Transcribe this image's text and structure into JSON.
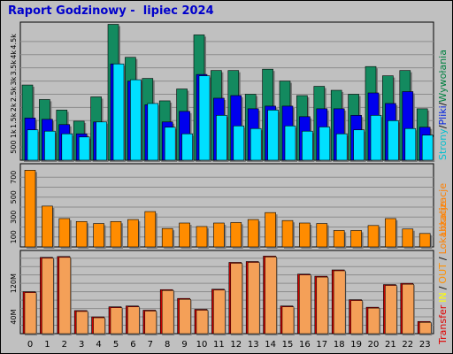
{
  "title": "Raport Godzinowy -  lipiec 2024",
  "chart_data": [
    {
      "type": "bar",
      "title": "Raport Godzinowy -  lipiec 2024",
      "categories": [
        "0",
        "1",
        "2",
        "3",
        "4",
        "5",
        "6",
        "7",
        "8",
        "9",
        "10",
        "11",
        "12",
        "13",
        "14",
        "15",
        "16",
        "17",
        "18",
        "19",
        "20",
        "21",
        "22",
        "23"
      ],
      "y_ticks": [
        "500",
        "1k",
        "1.5k",
        "2k",
        "2.5k",
        "3k",
        "3.5k",
        "4k",
        "4.5k"
      ],
      "ylim": [
        0,
        5100
      ],
      "legend": [
        "Strony",
        "/",
        "Pliki",
        "/",
        "Wywołania"
      ],
      "legend_colors": [
        "#00c0d0",
        "#000000",
        "#0020e0",
        "#000000",
        "#008040"
      ],
      "series": [
        {
          "name": "Wywołania",
          "color": "#138a5f",
          "values": [
            2850,
            2300,
            1900,
            1480,
            2400,
            5150,
            3900,
            3100,
            2250,
            2700,
            4750,
            3400,
            3400,
            2500,
            3450,
            3000,
            2450,
            2800,
            2650,
            2500,
            3550,
            3200,
            3400,
            1950
          ]
        },
        {
          "name": "Pliki",
          "color": "#0000ee",
          "values": [
            1600,
            1550,
            1350,
            1000,
            1450,
            3650,
            3000,
            2100,
            1450,
            1850,
            3250,
            2350,
            2450,
            1950,
            2050,
            2050,
            1650,
            1950,
            1950,
            1700,
            2550,
            2150,
            2600,
            1250
          ]
        },
        {
          "name": "Strony",
          "color": "#00e0ff",
          "values": [
            1150,
            1100,
            1000,
            880,
            1450,
            3650,
            3050,
            2150,
            1250,
            1000,
            3200,
            1700,
            1300,
            1200,
            1900,
            1300,
            1100,
            1260,
            1000,
            1150,
            1700,
            1500,
            1200,
            950
          ]
        }
      ]
    },
    {
      "type": "bar",
      "categories": [
        "0",
        "1",
        "2",
        "3",
        "4",
        "5",
        "6",
        "7",
        "8",
        "9",
        "10",
        "11",
        "12",
        "13",
        "14",
        "15",
        "16",
        "17",
        "18",
        "19",
        "20",
        "21",
        "22",
        "23"
      ],
      "y_ticks": [
        "100",
        "300",
        "500",
        "700"
      ],
      "ylim": [
        0,
        800
      ],
      "legend": [
        "Lokalizacje"
      ],
      "legend_colors": [
        "#ff8000"
      ],
      "series": [
        {
          "name": "Lokalizacje",
          "color": "#ff8c00",
          "values": [
            770,
            410,
            285,
            255,
            235,
            255,
            275,
            355,
            185,
            240,
            205,
            240,
            245,
            275,
            345,
            265,
            240,
            235,
            165,
            165,
            215,
            285,
            180,
            135
          ]
        }
      ]
    },
    {
      "type": "bar",
      "categories": [
        "0",
        "1",
        "2",
        "3",
        "4",
        "5",
        "6",
        "7",
        "8",
        "9",
        "10",
        "11",
        "12",
        "13",
        "14",
        "15",
        "16",
        "17",
        "18",
        "19",
        "20",
        "21",
        "22",
        "23"
      ],
      "y_ticks": [
        "40M",
        "120M"
      ],
      "ylim": [
        0,
        190
      ],
      "legend": [
        "Transfer",
        "IN",
        "/",
        "OUT",
        "/",
        "Lokalizacje"
      ],
      "legend_colors": [
        "#e00000",
        "#ffff00",
        "#000000",
        "#ff9000",
        "#000000",
        "#ff8000"
      ],
      "series": [
        {
          "name": "Transfer",
          "color": "#cc0000",
          "values": [
            100,
            182,
            184,
            55,
            40,
            64,
            66,
            56,
            105,
            84,
            58,
            106,
            170,
            172,
            185,
            66,
            142,
            137,
            152,
            81,
            63,
            117,
            120,
            29
          ]
        }
      ]
    }
  ],
  "categories_axis": [
    "0",
    "1",
    "2",
    "3",
    "4",
    "5",
    "6",
    "7",
    "8",
    "9",
    "10",
    "11",
    "12",
    "13",
    "14",
    "15",
    "16",
    "17",
    "18",
    "19",
    "20",
    "21",
    "22",
    "23"
  ]
}
